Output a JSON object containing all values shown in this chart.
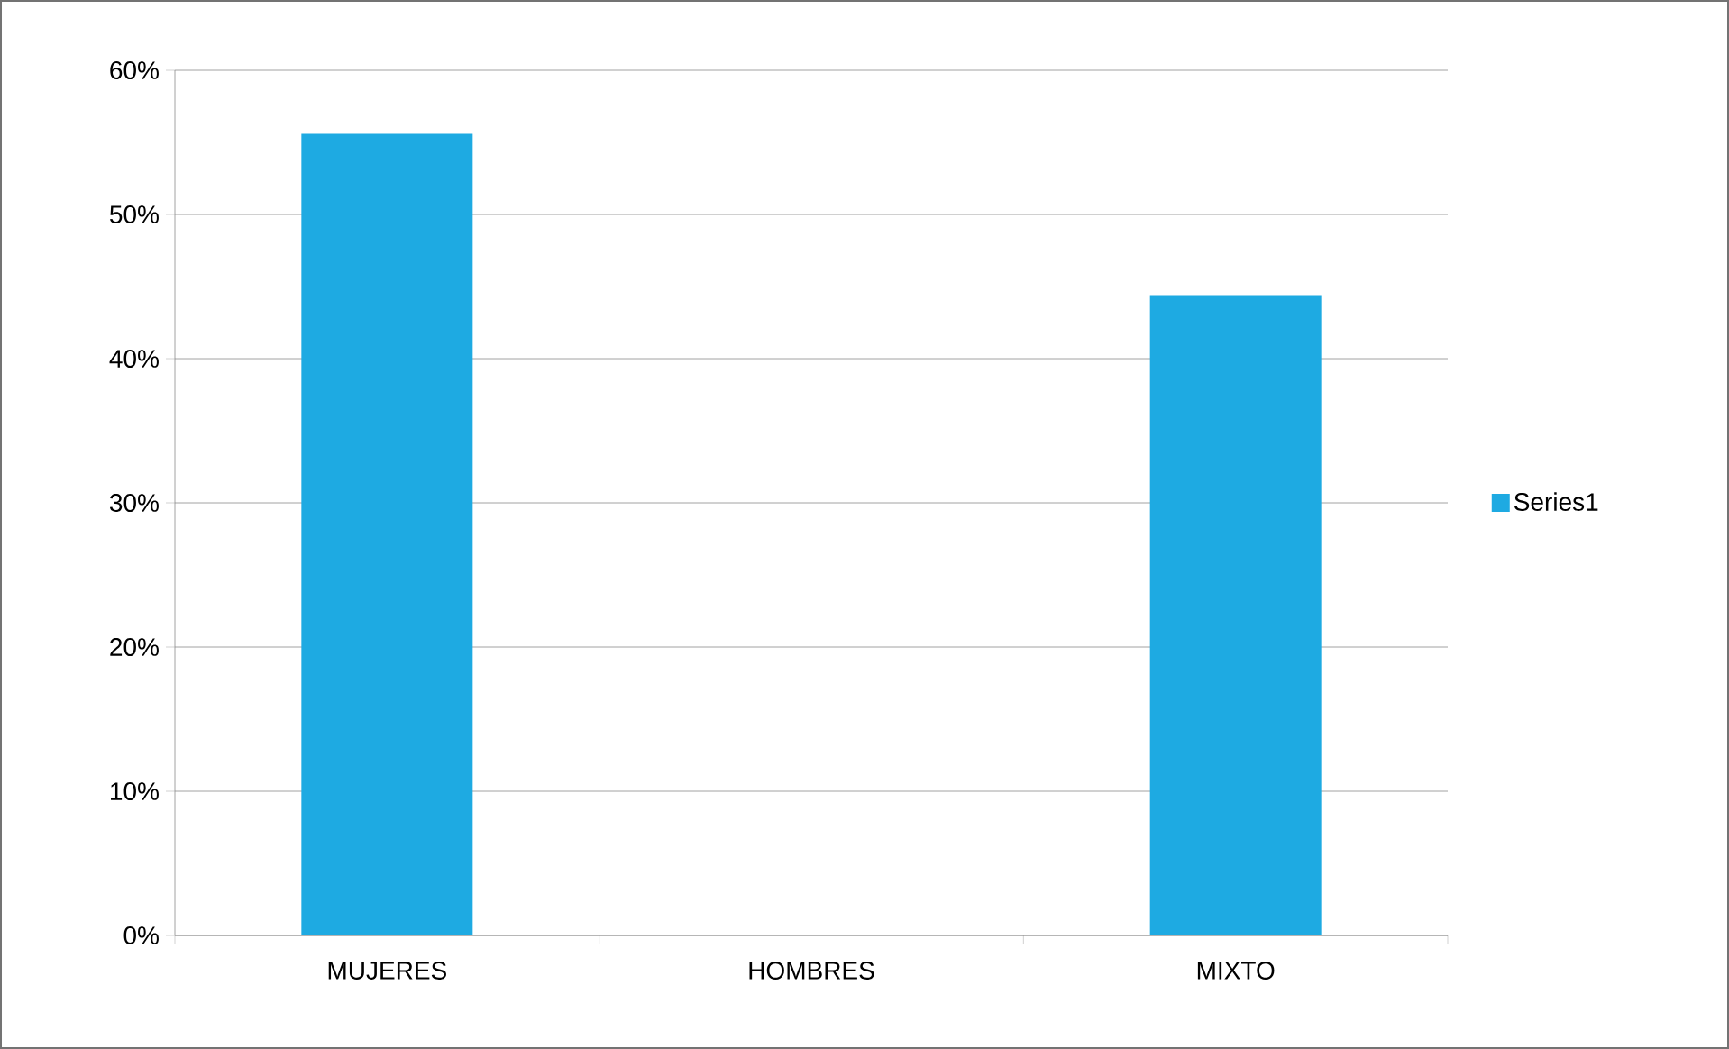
{
  "chart_data": {
    "type": "bar",
    "categories": [
      "MUJERES",
      "HOMBRES",
      "MIXTO"
    ],
    "series": [
      {
        "name": "Series1",
        "color": "#1eaae2",
        "values": [
          55.6,
          0,
          44.4
        ]
      }
    ],
    "ylim": [
      0,
      60
    ],
    "yticks": [
      {
        "value": 0,
        "label": "0%"
      },
      {
        "value": 10,
        "label": "10%"
      },
      {
        "value": 20,
        "label": "20%"
      },
      {
        "value": 30,
        "label": "30%"
      },
      {
        "value": 40,
        "label": "40%"
      },
      {
        "value": 50,
        "label": "50%"
      },
      {
        "value": 60,
        "label": "60%"
      }
    ],
    "grid": "y",
    "legend": "right"
  }
}
